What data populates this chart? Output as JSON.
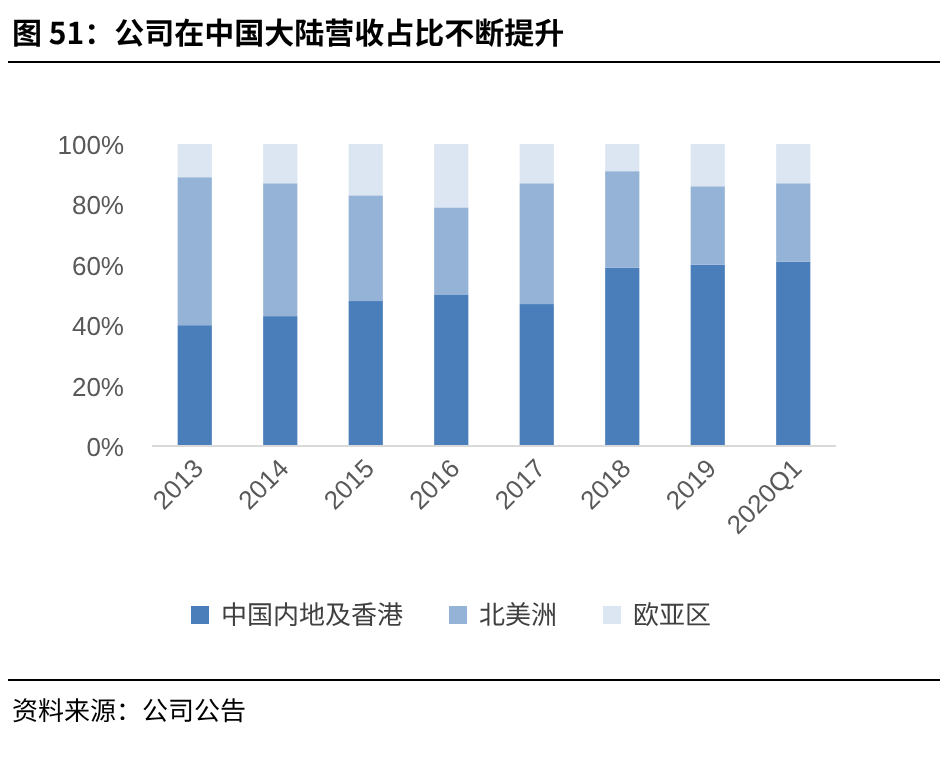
{
  "chart_data": {
    "type": "bar",
    "title": "图 51：公司在中国大陆营收占比不断提升",
    "stacked": true,
    "categories": [
      "2013",
      "2014",
      "2015",
      "2016",
      "2017",
      "2018",
      "2019",
      "2020Q1"
    ],
    "series": [
      {
        "name": "中国内地及香港",
        "color": "#4a7ebb",
        "values": [
          40,
          43,
          48,
          50,
          47,
          59,
          60,
          61
        ]
      },
      {
        "name": "北美洲",
        "color": "#95b3d7",
        "values": [
          49,
          44,
          35,
          29,
          40,
          32,
          26,
          26
        ]
      },
      {
        "name": "欧亚区",
        "color": "#dce6f2",
        "values": [
          11,
          13,
          17,
          21,
          13,
          9,
          14,
          13
        ]
      }
    ],
    "ylim": [
      0,
      100
    ],
    "yticks": [
      {
        "value": 0,
        "label": "0%"
      },
      {
        "value": 20,
        "label": "20%"
      },
      {
        "value": 40,
        "label": "40%"
      },
      {
        "value": 60,
        "label": "60%"
      },
      {
        "value": 80,
        "label": "80%"
      },
      {
        "value": 100,
        "label": "100%"
      }
    ],
    "legend": "bottom",
    "annotations": [
      "资料来源：公司公告"
    ]
  }
}
